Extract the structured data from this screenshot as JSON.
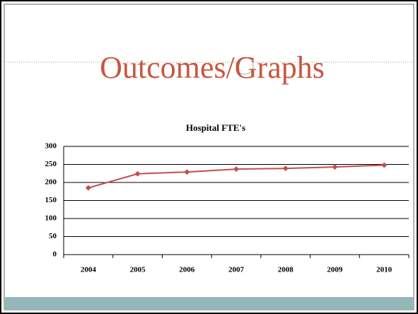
{
  "slide_title": "Outcomes/Graphs",
  "chart_data": {
    "type": "line",
    "title": "Hospital FTE's",
    "categories": [
      "2004",
      "2005",
      "2006",
      "2007",
      "2008",
      "2009",
      "2010"
    ],
    "series": [
      {
        "name": "Hospital FTE's",
        "color": "#c0504d",
        "values": [
          185,
          224,
          229,
          237,
          239,
          243,
          248
        ]
      }
    ],
    "ylim": [
      0,
      300
    ],
    "yticks": [
      0,
      50,
      100,
      150,
      200,
      250,
      300
    ],
    "grid": true
  }
}
